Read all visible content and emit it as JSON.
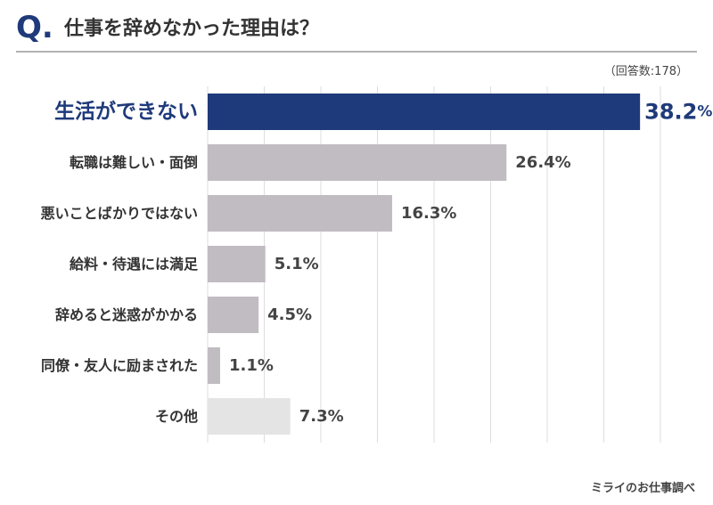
{
  "header": {
    "q_mark": "Q.",
    "title": "仕事を辞めなかった理由は？"
  },
  "note": "（回答数:178）",
  "footer": "ミライのお仕事調べ",
  "colors": {
    "highlight": "#1f3a7a",
    "bar": "#c1bcc2",
    "bar_light": "#e4e4e4",
    "grid": "#dddddd",
    "rule": "#999999"
  },
  "chart_data": {
    "type": "bar",
    "orientation": "horizontal",
    "title": "仕事を辞めなかった理由は？",
    "xlabel": "",
    "ylabel": "",
    "xlim": [
      0,
      40
    ],
    "grid": true,
    "unit": "%",
    "categories": [
      "生活ができない",
      "転職は難しい・面倒",
      "悪いことばかりではない",
      "給料・待遇には満足",
      "辞めると迷惑がかかる",
      "同僚・友人に励まされた",
      "その他"
    ],
    "values": [
      38.2,
      26.4,
      16.3,
      5.1,
      4.5,
      1.1,
      7.3
    ],
    "value_labels": [
      "38.2",
      "26.4%",
      "16.3%",
      "5.1%",
      "4.5%",
      "1.1%",
      "7.3%"
    ],
    "highlight_index": 0,
    "highlight_unit": "%"
  }
}
